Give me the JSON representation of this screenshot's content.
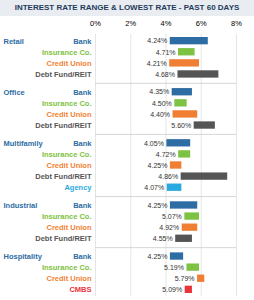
{
  "chart_data": {
    "type": "bar",
    "orientation": "horizontal",
    "title": "INTEREST RATE RANGE & LOWEST RATE - PAST 60 DAYS",
    "xlim": [
      0,
      8
    ],
    "xticks": [
      {
        "value": 0,
        "label": "0%"
      },
      {
        "value": 2,
        "label": "2%"
      },
      {
        "value": 4,
        "label": "4%"
      },
      {
        "value": 6,
        "label": "6%"
      },
      {
        "value": 8,
        "label": "8%"
      }
    ],
    "grid": true,
    "data_labels": true,
    "groups": [
      {
        "name": "Retail",
        "categories": [
          "Bank",
          "Insurance Co.",
          "Credit Union",
          "Debt Fund/REIT"
        ],
        "values": [
          [
            4.24,
            6.4
          ],
          [
            4.71,
            5.65
          ],
          [
            4.21,
            5.9
          ],
          [
            4.68,
            7.0
          ]
        ],
        "value_labels": [
          "4.24%",
          "4.71%",
          "4.21%",
          "4.68%"
        ],
        "colors": [
          "#2e6da4",
          "#7dc242",
          "#f07f33",
          "#555555"
        ]
      },
      {
        "name": "Office",
        "categories": [
          "Bank",
          "Insurance Co.",
          "Credit Union",
          "Debt Fund/REIT"
        ],
        "values": [
          [
            4.35,
            5.5
          ],
          [
            4.5,
            5.2
          ],
          [
            4.4,
            5.8
          ],
          [
            5.6,
            6.8
          ]
        ],
        "value_labels": [
          "4.35%",
          "4.50%",
          "4.40%",
          "5.60%"
        ],
        "colors": [
          "#2e6da4",
          "#7dc242",
          "#f07f33",
          "#555555"
        ]
      },
      {
        "name": "Multifamily",
        "categories": [
          "Bank",
          "Insurance Co.",
          "Credit Union",
          "Debt Fund/REIT",
          "Agency"
        ],
        "values": [
          [
            4.05,
            5.4
          ],
          [
            4.72,
            5.4
          ],
          [
            4.25,
            4.9
          ],
          [
            4.86,
            7.5
          ],
          [
            4.07,
            4.9
          ]
        ],
        "value_labels": [
          "4.05%",
          "4.72%",
          "4.25%",
          "4.86%",
          "4.07%"
        ],
        "colors": [
          "#2e6da4",
          "#7dc242",
          "#f07f33",
          "#555555",
          "#2aa9e0"
        ]
      },
      {
        "name": "Industrial",
        "categories": [
          "Bank",
          "Insurance Co.",
          "Credit Union",
          "Debt Fund/REIT"
        ],
        "values": [
          [
            4.25,
            5.8
          ],
          [
            5.07,
            5.9
          ],
          [
            4.92,
            5.8
          ],
          [
            4.55,
            5.5
          ]
        ],
        "value_labels": [
          "4.25%",
          "5.07%",
          "4.92%",
          "4.55%"
        ],
        "colors": [
          "#2e6da4",
          "#7dc242",
          "#f07f33",
          "#555555"
        ]
      },
      {
        "name": "Hospitality",
        "categories": [
          "Bank",
          "Insurance Co.",
          "Credit Union",
          "CMBS"
        ],
        "values": [
          [
            4.25,
            5.0
          ],
          [
            5.19,
            5.9
          ],
          [
            5.79,
            6.2
          ],
          [
            5.09,
            5.5
          ]
        ],
        "value_labels": [
          "4.25%",
          "5.19%",
          "5.79%",
          "5.09%"
        ],
        "colors": [
          "#2e6da4",
          "#7dc242",
          "#f07f33",
          "#e8343a"
        ]
      }
    ]
  }
}
